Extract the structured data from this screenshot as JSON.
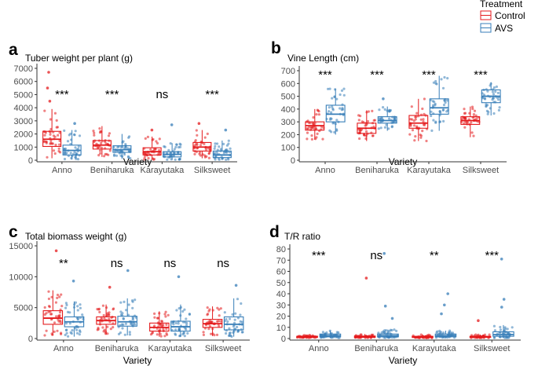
{
  "legend": {
    "title": "Treatment",
    "entries": [
      {
        "label": "Control",
        "color": "#E41A1C"
      },
      {
        "label": "AVS",
        "color": "#377EB8"
      }
    ]
  },
  "chart_data": [
    {
      "type": "boxplot",
      "panel": "a",
      "title": "Tuber weight per plant (g)",
      "xlabel": "Variety",
      "ylabel": "",
      "categories": [
        "Anno",
        "Beniharuka",
        "Karayutaka",
        "Silksweet"
      ],
      "ylim": [
        0,
        7000
      ],
      "yticks": [
        0,
        1000,
        2000,
        3000,
        4000,
        5000,
        6000,
        7000
      ],
      "significance": [
        "***",
        "***",
        "ns",
        "***"
      ],
      "series": [
        {
          "name": "Control",
          "color": "#E41A1C",
          "boxes": [
            {
              "min": 150,
              "q1": 1050,
              "median": 1600,
              "q3": 2200,
              "max": 3900
            },
            {
              "min": 250,
              "q1": 850,
              "median": 1150,
              "q3": 1500,
              "max": 2600
            },
            {
              "min": 50,
              "q1": 400,
              "median": 650,
              "q3": 950,
              "max": 1800
            },
            {
              "min": 150,
              "q1": 700,
              "median": 1000,
              "q3": 1350,
              "max": 2300
            }
          ]
        },
        {
          "name": "AVS",
          "color": "#377EB8",
          "boxes": [
            {
              "min": 50,
              "q1": 400,
              "median": 750,
              "q3": 1150,
              "max": 2300
            },
            {
              "min": 100,
              "q1": 600,
              "median": 800,
              "q3": 1100,
              "max": 2000
            },
            {
              "min": 30,
              "q1": 250,
              "median": 450,
              "q3": 650,
              "max": 1300
            },
            {
              "min": 30,
              "q1": 200,
              "median": 400,
              "q3": 700,
              "max": 1500
            }
          ]
        }
      ],
      "outliers": [
        {
          "series": "Control",
          "category": "Anno",
          "values": [
            4500,
            5500,
            6700
          ]
        },
        {
          "series": "AVS",
          "category": "Anno",
          "values": [
            2800
          ]
        },
        {
          "series": "Control",
          "category": "Karayutaka",
          "values": [
            2300
          ]
        },
        {
          "series": "AVS",
          "category": "Karayutaka",
          "values": [
            2700
          ]
        },
        {
          "series": "Control",
          "category": "Silksweet",
          "values": [
            2800
          ]
        },
        {
          "series": "AVS",
          "category": "Silksweet",
          "values": [
            2300
          ]
        }
      ]
    },
    {
      "type": "boxplot",
      "panel": "b",
      "title": "Vine Length (cm)",
      "xlabel": "Variety",
      "ylabel": "",
      "categories": [
        "Anno",
        "Beniharuka",
        "Karayutaka",
        "Silksweet"
      ],
      "ylim": [
        0,
        700
      ],
      "yticks": [
        0,
        100,
        200,
        300,
        400,
        500,
        600,
        700
      ],
      "significance": [
        "***",
        "***",
        "***",
        "***"
      ],
      "series": [
        {
          "name": "Control",
          "color": "#E41A1C",
          "boxes": [
            {
              "min": 160,
              "q1": 235,
              "median": 270,
              "q3": 300,
              "max": 400
            },
            {
              "min": 150,
              "q1": 210,
              "median": 250,
              "q3": 290,
              "max": 390
            },
            {
              "min": 150,
              "q1": 250,
              "median": 290,
              "q3": 350,
              "max": 480
            },
            {
              "min": 180,
              "q1": 280,
              "median": 310,
              "q3": 340,
              "max": 420
            }
          ]
        },
        {
          "name": "AVS",
          "color": "#377EB8",
          "boxes": [
            {
              "min": 200,
              "q1": 300,
              "median": 360,
              "q3": 430,
              "max": 560
            },
            {
              "min": 230,
              "q1": 290,
              "median": 310,
              "q3": 340,
              "max": 420
            },
            {
              "min": 230,
              "q1": 360,
              "median": 410,
              "q3": 480,
              "max": 660
            },
            {
              "min": 350,
              "q1": 450,
              "median": 500,
              "q3": 550,
              "max": 610
            }
          ]
        }
      ],
      "outliers": [
        {
          "series": "AVS",
          "category": "Beniharuka",
          "values": [
            480
          ]
        }
      ]
    },
    {
      "type": "boxplot",
      "panel": "c",
      "title": "Total biomass weight (g)",
      "xlabel": "Variety",
      "ylabel": "",
      "categories": [
        "Anno",
        "Beniharuka",
        "Karayutaka",
        "Silksweet"
      ],
      "ylim": [
        0,
        15000
      ],
      "yticks": [
        0,
        5000,
        10000,
        15000
      ],
      "significance": [
        "**",
        "ns",
        "ns",
        "ns"
      ],
      "series": [
        {
          "name": "Control",
          "color": "#E41A1C",
          "boxes": [
            {
              "min": 500,
              "q1": 2300,
              "median": 3300,
              "q3": 4500,
              "max": 7800
            },
            {
              "min": 600,
              "q1": 2300,
              "median": 2900,
              "q3": 3500,
              "max": 5500
            },
            {
              "min": 300,
              "q1": 1200,
              "median": 1800,
              "q3": 2500,
              "max": 4400
            },
            {
              "min": 400,
              "q1": 1800,
              "median": 2400,
              "q3": 3100,
              "max": 5200
            }
          ]
        },
        {
          "name": "AVS",
          "color": "#377EB8",
          "boxes": [
            {
              "min": 300,
              "q1": 1900,
              "median": 2700,
              "q3": 3500,
              "max": 6000
            },
            {
              "min": 500,
              "q1": 2000,
              "median": 2700,
              "q3": 3600,
              "max": 6500
            },
            {
              "min": 300,
              "q1": 1200,
              "median": 1900,
              "q3": 2800,
              "max": 5500
            },
            {
              "min": 300,
              "q1": 1400,
              "median": 2300,
              "q3": 3500,
              "max": 6500
            }
          ]
        }
      ],
      "outliers": [
        {
          "series": "Control",
          "category": "Anno",
          "values": [
            14200
          ]
        },
        {
          "series": "AVS",
          "category": "Anno",
          "values": [
            9300
          ]
        },
        {
          "series": "Control",
          "category": "Beniharuka",
          "values": [
            8300
          ]
        },
        {
          "series": "AVS",
          "category": "Beniharuka",
          "values": [
            11000
          ]
        },
        {
          "series": "AVS",
          "category": "Karayutaka",
          "values": [
            10000
          ]
        },
        {
          "series": "AVS",
          "category": "Silksweet",
          "values": [
            8600
          ]
        }
      ]
    },
    {
      "type": "boxplot",
      "panel": "d",
      "title": "T/R ratio",
      "xlabel": "Variety",
      "ylabel": "",
      "categories": [
        "Anno",
        "Beniharuka",
        "Karayutaka",
        "Silksweet"
      ],
      "ylim": [
        0,
        80
      ],
      "yticks": [
        0,
        10,
        20,
        30,
        40,
        50,
        60,
        70,
        80
      ],
      "significance": [
        "***",
        "ns",
        "**",
        "***"
      ],
      "series": [
        {
          "name": "Control",
          "color": "#E41A1C",
          "boxes": [
            {
              "min": 0.5,
              "q1": 1.0,
              "median": 1.5,
              "q3": 2.0,
              "max": 3.0
            },
            {
              "min": 0.5,
              "q1": 1.0,
              "median": 1.5,
              "q3": 2.2,
              "max": 4.0
            },
            {
              "min": 0.4,
              "q1": 0.9,
              "median": 1.4,
              "q3": 2.0,
              "max": 3.5
            },
            {
              "min": 0.5,
              "q1": 1.0,
              "median": 1.5,
              "q3": 2.0,
              "max": 3.5
            }
          ]
        },
        {
          "name": "AVS",
          "color": "#377EB8",
          "boxes": [
            {
              "min": 0.5,
              "q1": 1.5,
              "median": 2.5,
              "q3": 4.0,
              "max": 7.0
            },
            {
              "min": 0.5,
              "q1": 1.5,
              "median": 2.5,
              "q3": 4.0,
              "max": 8.0
            },
            {
              "min": 0.5,
              "q1": 1.5,
              "median": 2.5,
              "q3": 4.0,
              "max": 7.0
            },
            {
              "min": 0.5,
              "q1": 2.0,
              "median": 3.5,
              "q3": 6.0,
              "max": 12.0
            }
          ]
        }
      ],
      "outliers": [
        {
          "series": "Control",
          "category": "Beniharuka",
          "values": [
            54
          ]
        },
        {
          "series": "AVS",
          "category": "Beniharuka",
          "values": [
            76,
            29,
            18
          ]
        },
        {
          "series": "AVS",
          "category": "Karayutaka",
          "values": [
            40,
            30,
            22
          ]
        },
        {
          "series": "Control",
          "category": "Silksweet",
          "values": [
            16
          ]
        },
        {
          "series": "AVS",
          "category": "Silksweet",
          "values": [
            71,
            35,
            28
          ]
        }
      ]
    }
  ]
}
